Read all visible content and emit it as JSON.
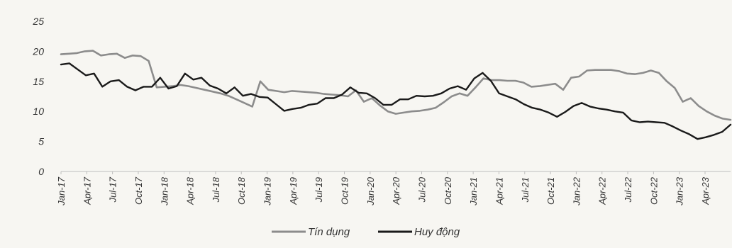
{
  "chart_data": {
    "type": "line",
    "ylim": [
      0,
      25
    ],
    "yticks": [
      0,
      5,
      10,
      15,
      20,
      25
    ],
    "x_tick_labels": [
      "Jan-17",
      "Apr-17",
      "Jul-17",
      "Oct-17",
      "Jan-18",
      "Apr-18",
      "Jul-18",
      "Oct-18",
      "Jan-19",
      "Apr-19",
      "Jul-19",
      "Oct-19",
      "Jan-20",
      "Apr-20",
      "Jul-20",
      "Oct-20",
      "Jan-21",
      "Apr-21",
      "Jul-21",
      "Oct-21",
      "Jan-22",
      "Apr-22",
      "Jul-22",
      "Oct-22",
      "Jan-23",
      "Apr-23"
    ],
    "legend_position": "bottom",
    "grid": false,
    "series": [
      {
        "name": "Tín dụng",
        "color": "#8c8c8c",
        "values": [
          19.5,
          19.6,
          19.7,
          20.0,
          20.1,
          19.3,
          19.5,
          19.6,
          18.9,
          19.3,
          19.2,
          18.4,
          14.0,
          14.1,
          14.2,
          14.4,
          14.2,
          13.9,
          13.6,
          13.3,
          13.0,
          12.6,
          12.0,
          11.4,
          10.8,
          15.0,
          13.6,
          13.4,
          13.2,
          13.4,
          13.3,
          13.2,
          13.1,
          12.9,
          12.8,
          12.7,
          12.5,
          13.5,
          11.6,
          12.2,
          11.0,
          10.0,
          9.6,
          9.8,
          10.0,
          10.1,
          10.3,
          10.6,
          11.5,
          12.5,
          13.0,
          12.6,
          14.0,
          15.5,
          15.2,
          15.2,
          15.1,
          15.1,
          14.8,
          14.1,
          14.2,
          14.4,
          14.6,
          13.6,
          15.6,
          15.8,
          16.8,
          16.9,
          16.9,
          16.9,
          16.7,
          16.3,
          16.2,
          16.4,
          16.8,
          16.4,
          15.0,
          13.9,
          11.6,
          12.2,
          10.9,
          10.0,
          9.3,
          8.8,
          8.6
        ]
      },
      {
        "name": "Huy động",
        "color": "#1a1a1a",
        "values": [
          17.8,
          18.0,
          17.0,
          16.0,
          16.3,
          14.1,
          15.0,
          15.2,
          14.1,
          13.5,
          14.1,
          14.1,
          15.6,
          13.8,
          14.2,
          16.3,
          15.3,
          15.6,
          14.3,
          13.8,
          13.0,
          14.0,
          12.6,
          12.9,
          12.4,
          12.3,
          11.2,
          10.1,
          10.4,
          10.6,
          11.1,
          11.3,
          12.2,
          12.2,
          12.8,
          14.0,
          13.1,
          13.0,
          12.2,
          11.1,
          11.1,
          12.0,
          12.0,
          12.6,
          12.5,
          12.6,
          13.0,
          13.8,
          14.2,
          13.6,
          15.5,
          16.4,
          15.1,
          13.0,
          12.5,
          12.0,
          11.2,
          10.6,
          10.3,
          9.8,
          9.1,
          9.9,
          10.9,
          11.4,
          10.8,
          10.5,
          10.3,
          10.0,
          9.8,
          8.5,
          8.2,
          8.3,
          8.2,
          8.1,
          7.5,
          6.8,
          6.2,
          5.4,
          5.7,
          6.1,
          6.6,
          7.8
        ]
      }
    ]
  }
}
